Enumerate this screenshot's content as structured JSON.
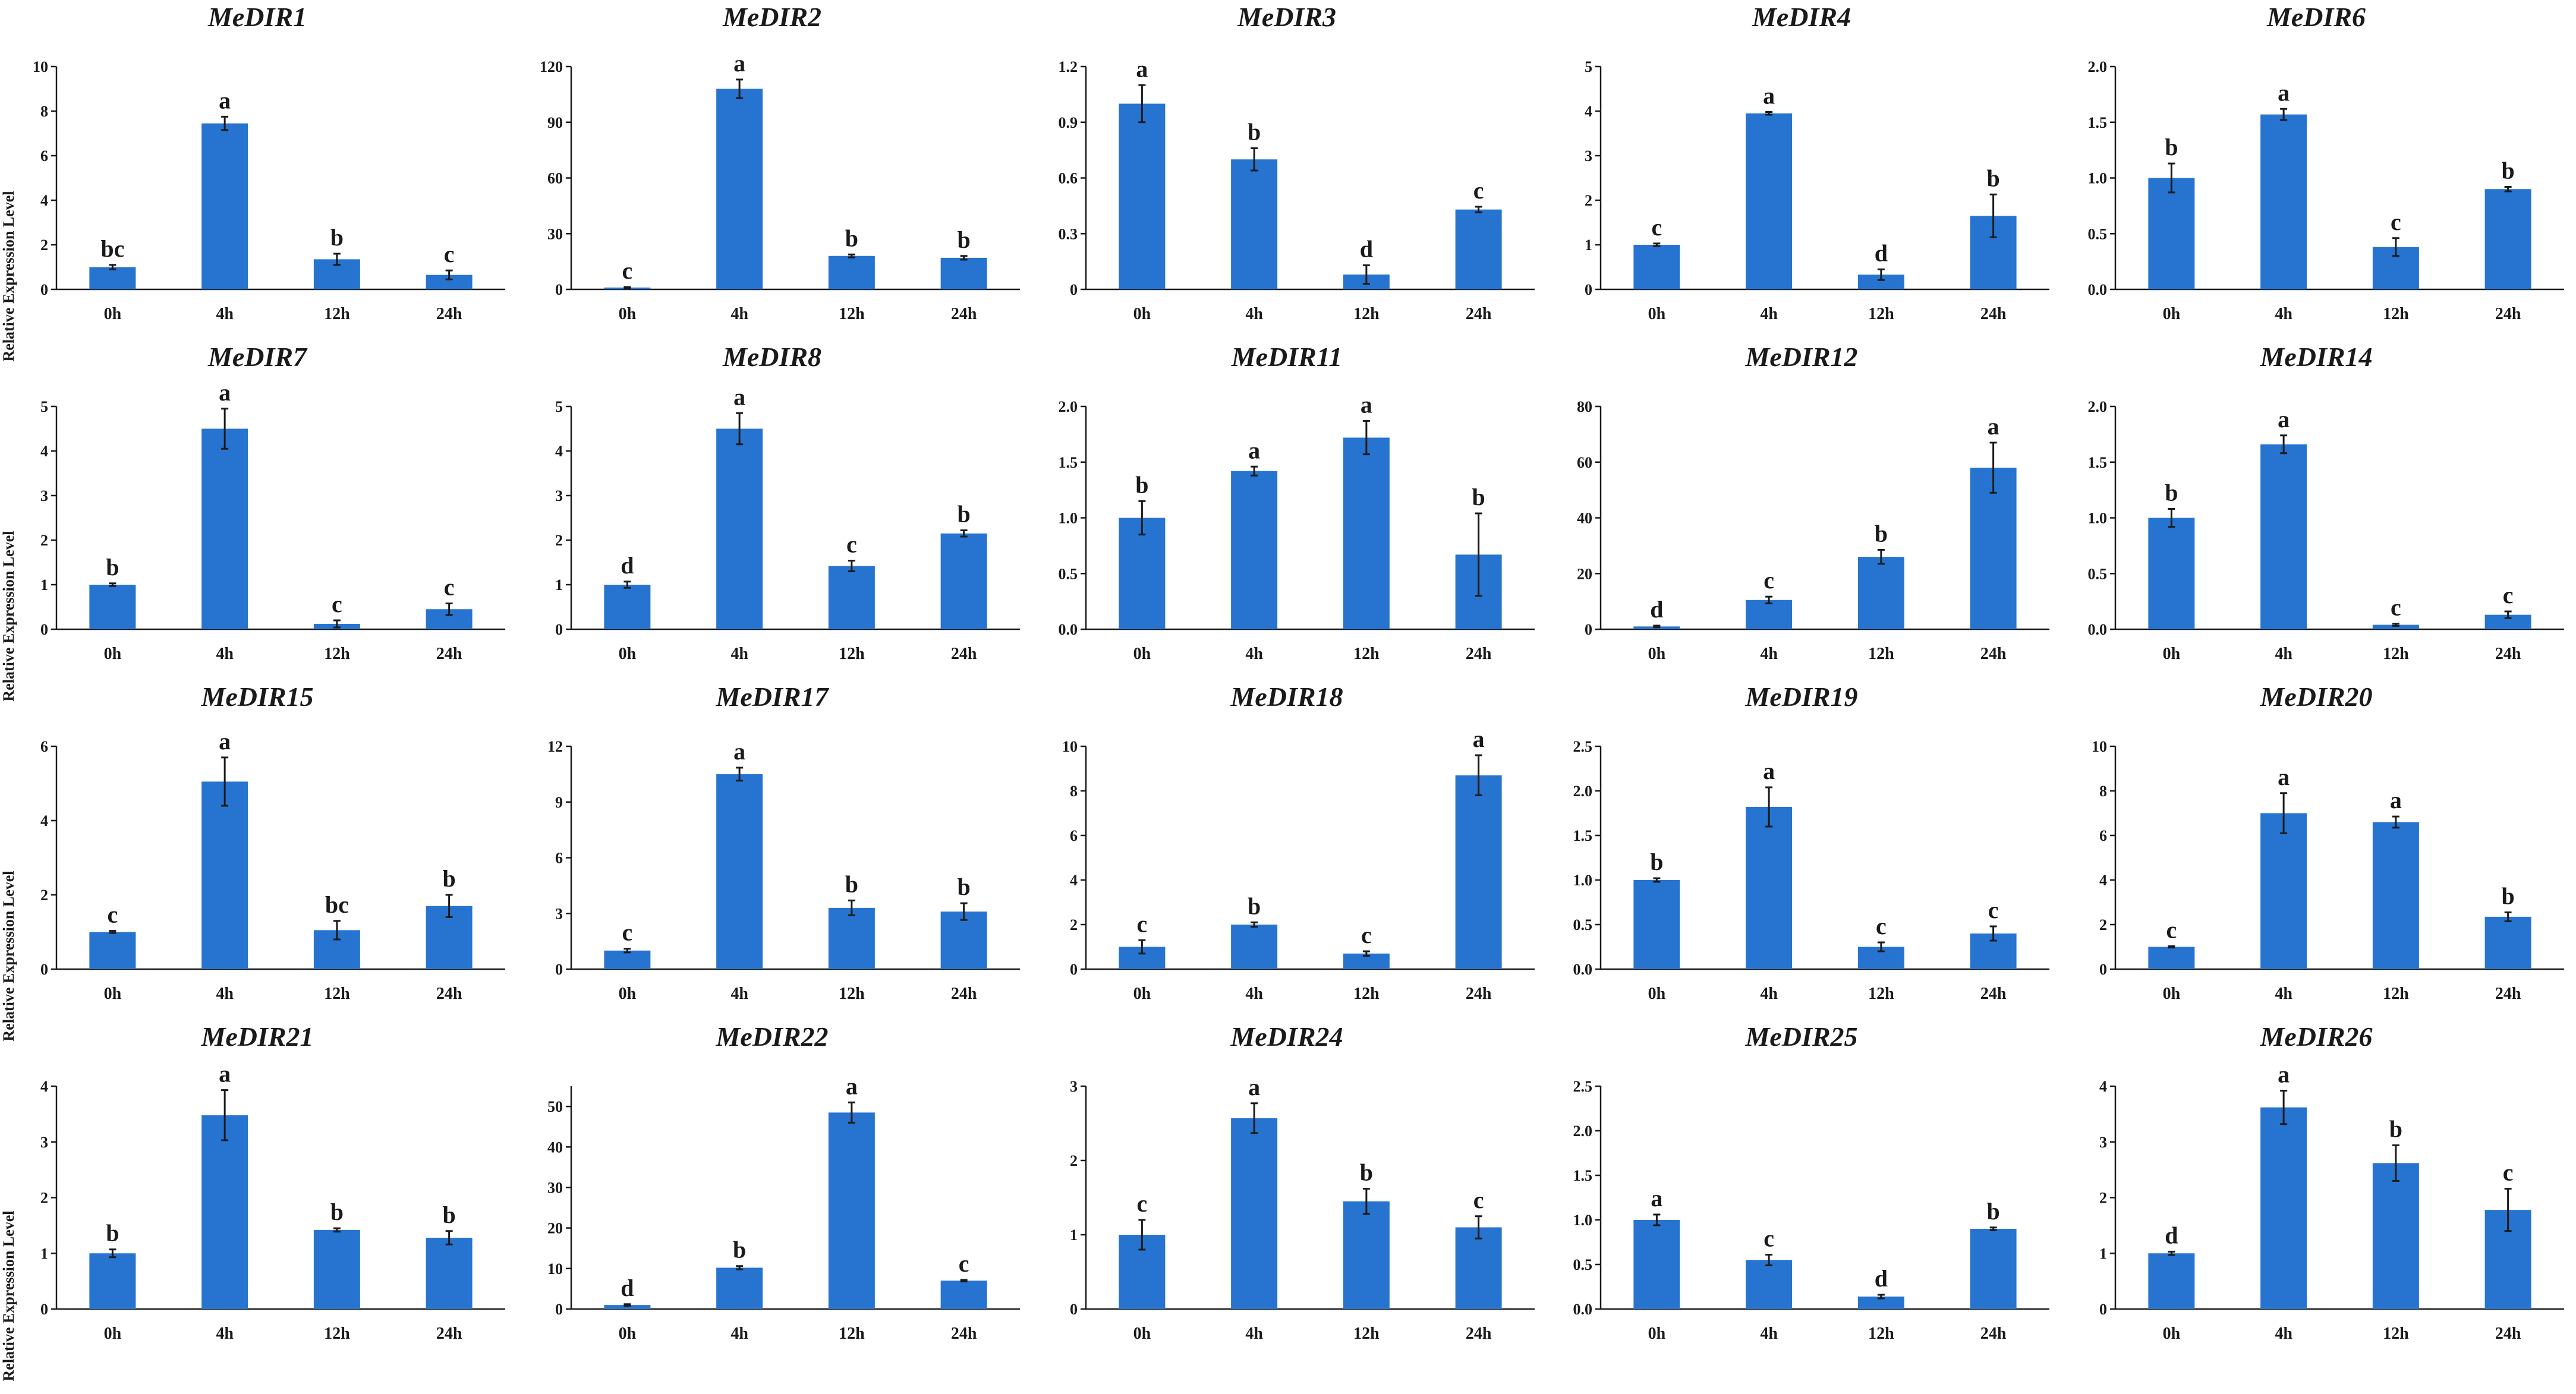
{
  "figure": {
    "ylabel": "Relative Expression Level",
    "bar_color": "#2774d0",
    "axis_color": "#1a1a1a"
  },
  "chart_data": [
    {
      "type": "bar",
      "title": "MeDIR1",
      "categories": [
        "0h",
        "4h",
        "12h",
        "24h"
      ],
      "values": [
        1.0,
        7.45,
        1.35,
        0.65
      ],
      "errors": [
        0.1,
        0.3,
        0.25,
        0.2
      ],
      "letters": [
        "bc",
        "a",
        "b",
        "c"
      ],
      "ylim": [
        0,
        10
      ],
      "yticks": [
        0,
        2,
        4,
        6,
        8,
        10
      ],
      "tick_labels": [
        "0",
        "2",
        "4",
        "6",
        "8",
        "10"
      ],
      "ylabel": "Relative Expression Level"
    },
    {
      "type": "bar",
      "title": "MeDIR2",
      "categories": [
        "0h",
        "4h",
        "12h",
        "24h"
      ],
      "values": [
        1,
        108,
        18,
        17
      ],
      "errors": [
        0.3,
        5,
        0.8,
        1
      ],
      "letters": [
        "c",
        "a",
        "b",
        "b"
      ],
      "ylim": [
        0,
        120
      ],
      "yticks": [
        0,
        30,
        60,
        90,
        120
      ],
      "tick_labels": [
        "0",
        "30",
        "60",
        "90",
        "120"
      ],
      "ylabel": ""
    },
    {
      "type": "bar",
      "title": "MeDIR3",
      "categories": [
        "0h",
        "4h",
        "12h",
        "24h"
      ],
      "values": [
        1.0,
        0.7,
        0.08,
        0.43
      ],
      "errors": [
        0.1,
        0.06,
        0.05,
        0.015
      ],
      "letters": [
        "a",
        "b",
        "d",
        "c"
      ],
      "ylim": [
        0,
        1.2
      ],
      "yticks": [
        0,
        0.3,
        0.6,
        0.9,
        1.2
      ],
      "tick_labels": [
        "0",
        "0.3",
        "0.6",
        "0.9",
        "1.2"
      ],
      "ylabel": ""
    },
    {
      "type": "bar",
      "title": "MeDIR4",
      "categories": [
        "0h",
        "4h",
        "12h",
        "24h"
      ],
      "values": [
        1.0,
        3.95,
        0.33,
        1.65
      ],
      "errors": [
        0.03,
        0.03,
        0.12,
        0.48
      ],
      "letters": [
        "c",
        "a",
        "d",
        "b"
      ],
      "ylim": [
        0,
        5
      ],
      "yticks": [
        0,
        1,
        2,
        3,
        4,
        5
      ],
      "tick_labels": [
        "0",
        "1",
        "2",
        "3",
        "4",
        "5"
      ],
      "ylabel": ""
    },
    {
      "type": "bar",
      "title": "MeDIR6",
      "categories": [
        "0h",
        "4h",
        "12h",
        "24h"
      ],
      "values": [
        1.0,
        1.57,
        0.38,
        0.9
      ],
      "errors": [
        0.13,
        0.05,
        0.08,
        0.02
      ],
      "letters": [
        "b",
        "a",
        "c",
        "b"
      ],
      "ylim": [
        0,
        2.0
      ],
      "yticks": [
        0,
        0.5,
        1.0,
        1.5,
        2.0
      ],
      "tick_labels": [
        "0.0",
        "0.5",
        "1.0",
        "1.5",
        "2.0"
      ],
      "ylabel": ""
    },
    {
      "type": "bar",
      "title": "MeDIR7",
      "categories": [
        "0h",
        "4h",
        "12h",
        "24h"
      ],
      "values": [
        1.0,
        4.5,
        0.12,
        0.45
      ],
      "errors": [
        0.03,
        0.45,
        0.08,
        0.13
      ],
      "letters": [
        "b",
        "a",
        "c",
        "c"
      ],
      "ylim": [
        0,
        5
      ],
      "yticks": [
        0,
        1,
        2,
        3,
        4,
        5
      ],
      "tick_labels": [
        "0",
        "1",
        "2",
        "3",
        "4",
        "5"
      ],
      "ylabel": "Relative Expression Level"
    },
    {
      "type": "bar",
      "title": "MeDIR8",
      "categories": [
        "0h",
        "4h",
        "12h",
        "24h"
      ],
      "values": [
        1.0,
        4.5,
        1.42,
        2.15
      ],
      "errors": [
        0.07,
        0.35,
        0.12,
        0.07
      ],
      "letters": [
        "d",
        "a",
        "c",
        "b"
      ],
      "ylim": [
        0,
        5
      ],
      "yticks": [
        0,
        1,
        2,
        3,
        4,
        5
      ],
      "tick_labels": [
        "0",
        "1",
        "2",
        "3",
        "4",
        "5"
      ],
      "ylabel": ""
    },
    {
      "type": "bar",
      "title": "MeDIR11",
      "categories": [
        "0h",
        "4h",
        "12h",
        "24h"
      ],
      "values": [
        1.0,
        1.42,
        1.72,
        0.67
      ],
      "errors": [
        0.15,
        0.04,
        0.15,
        0.37
      ],
      "letters": [
        "b",
        "a",
        "a",
        "b"
      ],
      "ylim": [
        0,
        2.0
      ],
      "yticks": [
        0,
        0.5,
        1.0,
        1.5,
        2.0
      ],
      "tick_labels": [
        "0.0",
        "0.5",
        "1.0",
        "1.5",
        "2.0"
      ],
      "ylabel": ""
    },
    {
      "type": "bar",
      "title": "MeDIR12",
      "categories": [
        "0h",
        "4h",
        "12h",
        "24h"
      ],
      "values": [
        1,
        10.5,
        26,
        58
      ],
      "errors": [
        0.3,
        1.2,
        2.5,
        9
      ],
      "letters": [
        "d",
        "c",
        "b",
        "a"
      ],
      "ylim": [
        0,
        80
      ],
      "yticks": [
        0,
        20,
        40,
        60,
        80
      ],
      "tick_labels": [
        "0",
        "20",
        "40",
        "60",
        "80"
      ],
      "ylabel": ""
    },
    {
      "type": "bar",
      "title": "MeDIR14",
      "categories": [
        "0h",
        "4h",
        "12h",
        "24h"
      ],
      "values": [
        1.0,
        1.66,
        0.04,
        0.13
      ],
      "errors": [
        0.08,
        0.08,
        0.01,
        0.03
      ],
      "letters": [
        "b",
        "a",
        "c",
        "c"
      ],
      "ylim": [
        0,
        2.0
      ],
      "yticks": [
        0,
        0.5,
        1.0,
        1.5,
        2.0
      ],
      "tick_labels": [
        "0.0",
        "0.5",
        "1.0",
        "1.5",
        "2.0"
      ],
      "ylabel": ""
    },
    {
      "type": "bar",
      "title": "MeDIR15",
      "categories": [
        "0h",
        "4h",
        "12h",
        "24h"
      ],
      "values": [
        1.0,
        5.05,
        1.05,
        1.7
      ],
      "errors": [
        0.03,
        0.65,
        0.25,
        0.3
      ],
      "letters": [
        "c",
        "a",
        "bc",
        "b"
      ],
      "ylim": [
        0,
        6
      ],
      "yticks": [
        0,
        2,
        4,
        6
      ],
      "tick_labels": [
        "0",
        "2",
        "4",
        "6"
      ],
      "ylabel": "Relative Expression Level"
    },
    {
      "type": "bar",
      "title": "MeDIR17",
      "categories": [
        "0h",
        "4h",
        "12h",
        "24h"
      ],
      "values": [
        1.0,
        10.5,
        3.3,
        3.1
      ],
      "errors": [
        0.1,
        0.35,
        0.4,
        0.45
      ],
      "letters": [
        "c",
        "a",
        "b",
        "b"
      ],
      "ylim": [
        0,
        12
      ],
      "yticks": [
        0,
        3,
        6,
        9,
        12
      ],
      "tick_labels": [
        "0",
        "3",
        "6",
        "9",
        "12"
      ],
      "ylabel": ""
    },
    {
      "type": "bar",
      "title": "MeDIR18",
      "categories": [
        "0h",
        "4h",
        "12h",
        "24h"
      ],
      "values": [
        1.0,
        2.0,
        0.7,
        8.7
      ],
      "errors": [
        0.3,
        0.1,
        0.1,
        0.9
      ],
      "letters": [
        "c",
        "b",
        "c",
        "a"
      ],
      "ylim": [
        0,
        10
      ],
      "yticks": [
        0,
        2,
        4,
        6,
        8,
        10
      ],
      "tick_labels": [
        "0",
        "2",
        "4",
        "6",
        "8",
        "10"
      ],
      "ylabel": ""
    },
    {
      "type": "bar",
      "title": "MeDIR19",
      "categories": [
        "0h",
        "4h",
        "12h",
        "24h"
      ],
      "values": [
        1.0,
        1.82,
        0.25,
        0.4
      ],
      "errors": [
        0.02,
        0.22,
        0.05,
        0.08
      ],
      "letters": [
        "b",
        "a",
        "c",
        "c"
      ],
      "ylim": [
        0,
        2.5
      ],
      "yticks": [
        0,
        0.5,
        1.0,
        1.5,
        2.0,
        2.5
      ],
      "tick_labels": [
        "0.0",
        "0.5",
        "1.0",
        "1.5",
        "2.0",
        "2.5"
      ],
      "ylabel": ""
    },
    {
      "type": "bar",
      "title": "MeDIR20",
      "categories": [
        "0h",
        "4h",
        "12h",
        "24h"
      ],
      "values": [
        1.0,
        7.0,
        6.6,
        2.35
      ],
      "errors": [
        0.03,
        0.9,
        0.25,
        0.2
      ],
      "letters": [
        "c",
        "a",
        "a",
        "b"
      ],
      "ylim": [
        0,
        10
      ],
      "yticks": [
        0,
        2,
        4,
        6,
        8,
        10
      ],
      "tick_labels": [
        "0",
        "2",
        "4",
        "6",
        "8",
        "10"
      ],
      "ylabel": ""
    },
    {
      "type": "bar",
      "title": "MeDIR21",
      "categories": [
        "0h",
        "4h",
        "12h",
        "24h"
      ],
      "values": [
        1.0,
        3.48,
        1.42,
        1.28
      ],
      "errors": [
        0.07,
        0.45,
        0.03,
        0.12
      ],
      "letters": [
        "b",
        "a",
        "b",
        "b"
      ],
      "ylim": [
        0,
        4
      ],
      "yticks": [
        0,
        1,
        2,
        3,
        4
      ],
      "tick_labels": [
        "0",
        "1",
        "2",
        "3",
        "4"
      ],
      "ylabel": "Relative Expression Level"
    },
    {
      "type": "bar",
      "title": "MeDIR22",
      "categories": [
        "0h",
        "4h",
        "12h",
        "24h"
      ],
      "values": [
        1,
        10.2,
        48.5,
        7
      ],
      "errors": [
        0.2,
        0.4,
        2.5,
        0.2
      ],
      "letters": [
        "d",
        "b",
        "a",
        "c"
      ],
      "ylim": [
        0,
        55
      ],
      "yticks": [
        0,
        10,
        20,
        30,
        40,
        50
      ],
      "tick_labels": [
        "0",
        "10",
        "20",
        "30",
        "40",
        "50"
      ],
      "ylabel": ""
    },
    {
      "type": "bar",
      "title": "MeDIR24",
      "categories": [
        "0h",
        "4h",
        "12h",
        "24h"
      ],
      "values": [
        1.0,
        2.57,
        1.45,
        1.1
      ],
      "errors": [
        0.2,
        0.2,
        0.17,
        0.15
      ],
      "letters": [
        "c",
        "a",
        "b",
        "c"
      ],
      "ylim": [
        0,
        3
      ],
      "yticks": [
        0,
        1,
        2,
        3
      ],
      "tick_labels": [
        "0",
        "1",
        "2",
        "3"
      ],
      "ylabel": ""
    },
    {
      "type": "bar",
      "title": "MeDIR25",
      "categories": [
        "0h",
        "4h",
        "12h",
        "24h"
      ],
      "values": [
        1.0,
        0.55,
        0.14,
        0.9
      ],
      "errors": [
        0.06,
        0.06,
        0.02,
        0.015
      ],
      "letters": [
        "a",
        "c",
        "d",
        "b"
      ],
      "ylim": [
        0,
        2.5
      ],
      "yticks": [
        0,
        0.5,
        1.0,
        1.5,
        2.0,
        2.5
      ],
      "tick_labels": [
        "0.0",
        "0.5",
        "1.0",
        "1.5",
        "2.0",
        "2.5"
      ],
      "ylabel": ""
    },
    {
      "type": "bar",
      "title": "MeDIR26",
      "categories": [
        "0h",
        "4h",
        "12h",
        "24h"
      ],
      "values": [
        1.0,
        3.62,
        2.62,
        1.78
      ],
      "errors": [
        0.03,
        0.3,
        0.32,
        0.38
      ],
      "letters": [
        "d",
        "a",
        "b",
        "c"
      ],
      "ylim": [
        0,
        4
      ],
      "yticks": [
        0,
        1,
        2,
        3,
        4
      ],
      "tick_labels": [
        "0",
        "1",
        "2",
        "3",
        "4"
      ],
      "ylabel": ""
    }
  ]
}
